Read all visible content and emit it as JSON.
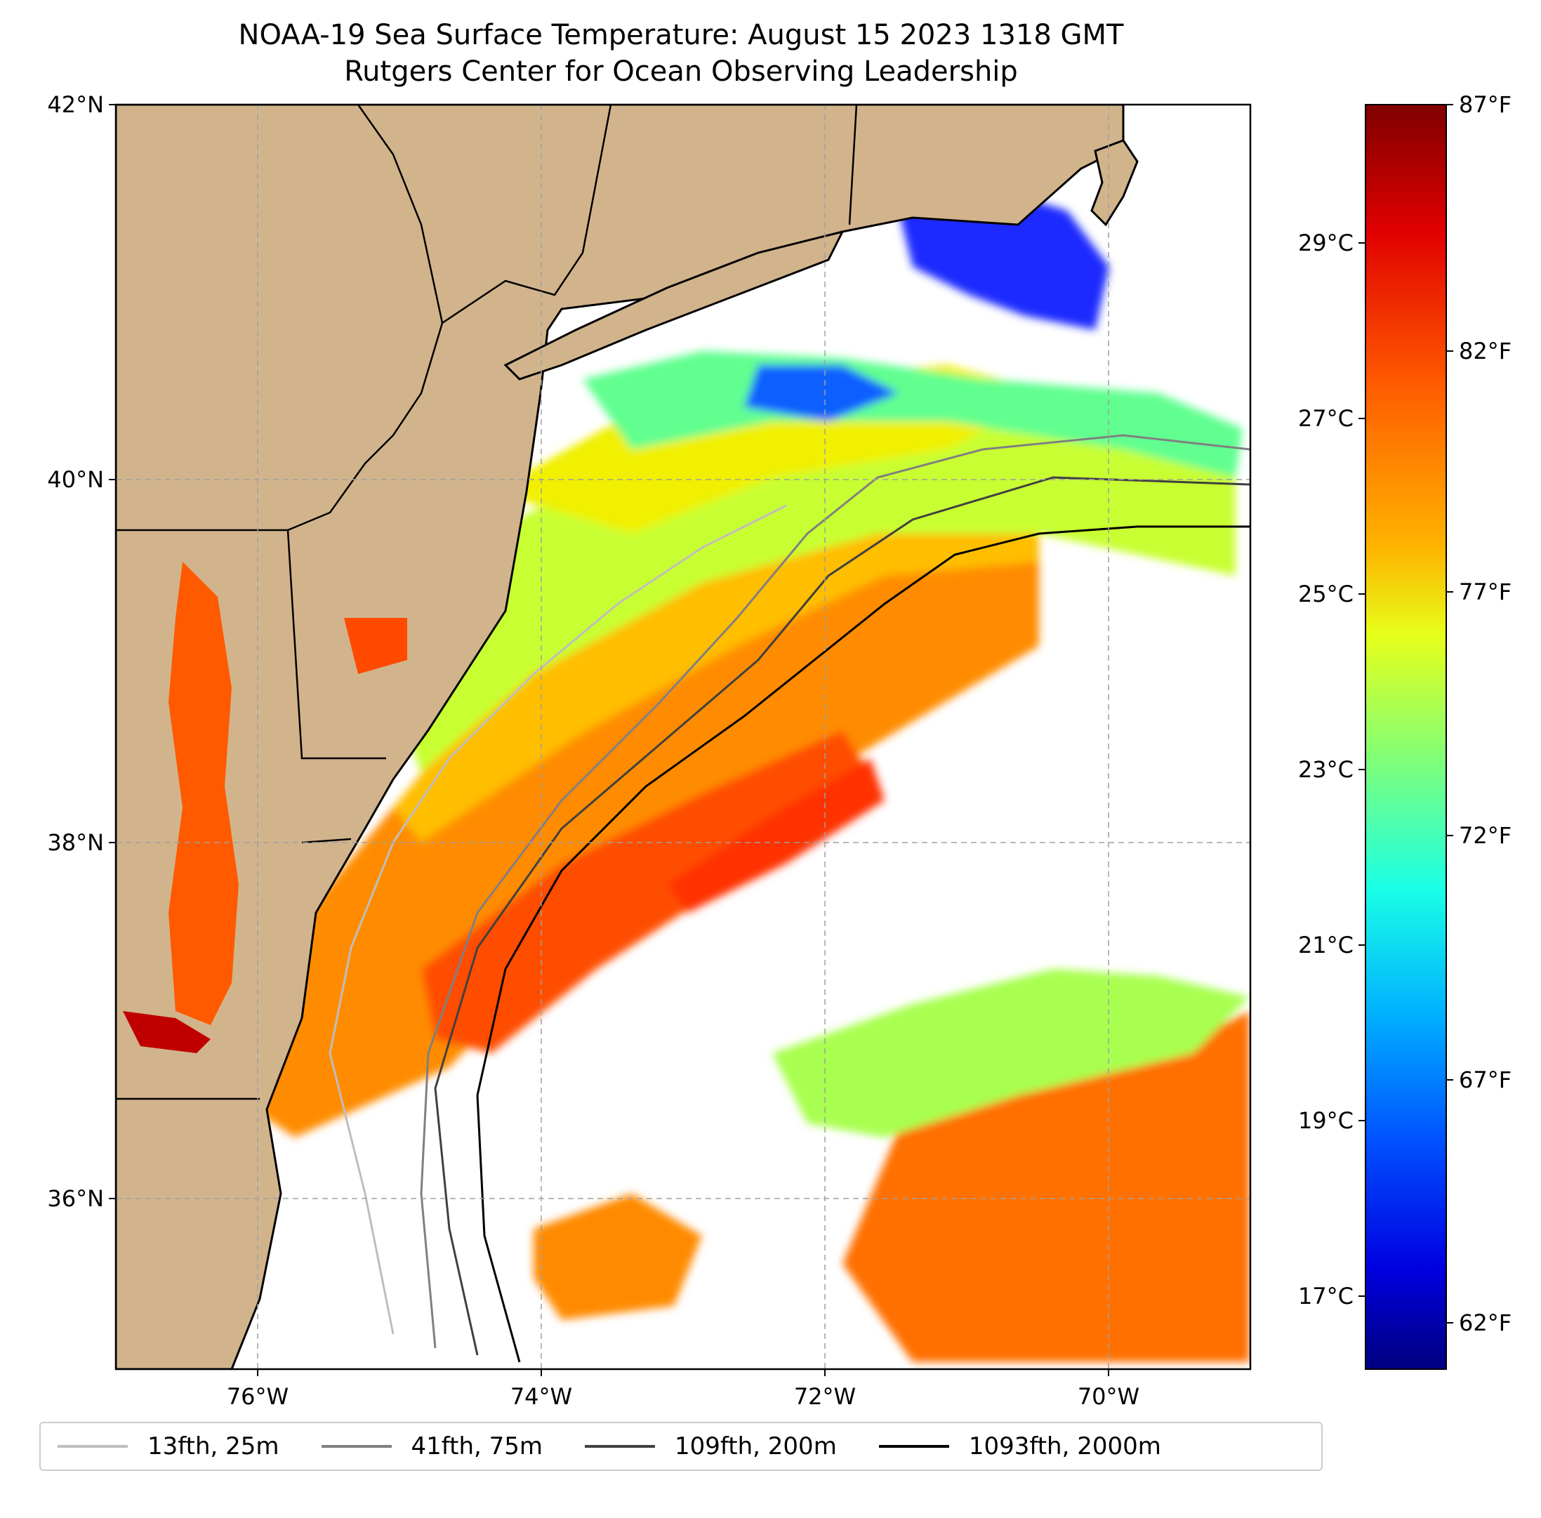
{
  "title": {
    "line1": "NOAA-19 Sea Surface Temperature: August 15 2023 1318 GMT",
    "line2": "Rutgers Center for Ocean Observing Leadership"
  },
  "map": {
    "lat_ticks": [
      "42°N",
      "40°N",
      "38°N",
      "36°N"
    ],
    "lon_ticks": [
      "76°W",
      "74°W",
      "72°W",
      "70°W"
    ],
    "extent": {
      "lon_min": -77,
      "lon_max": -69,
      "lat_min": 35,
      "lat_max": 42
    },
    "land_color": "#D2B48C",
    "no_data_color": "#ffffff",
    "gridlines": true
  },
  "colorbar": {
    "celsius_ticks": [
      "29°C",
      "27°C",
      "25°C",
      "23°C",
      "21°C",
      "19°C",
      "17°C"
    ],
    "fahrenheit_ticks": [
      "87°F",
      "82°F",
      "77°F",
      "72°F",
      "67°F",
      "62°F"
    ],
    "colormap": "jet",
    "colors": [
      "#800000",
      "#e00000",
      "#ff5a00",
      "#ffb400",
      "#e6ff1a",
      "#7dff7a",
      "#1affe6",
      "#00b0ff",
      "#0050ff",
      "#0000e0",
      "#000080"
    ]
  },
  "legend": {
    "items": [
      {
        "label": "13fth, 25m",
        "color": "#bebebe"
      },
      {
        "label": "41fth, 75m",
        "color": "#808080"
      },
      {
        "label": "109fth, 200m",
        "color": "#404040"
      },
      {
        "label": "1093fth, 2000m",
        "color": "#000000"
      }
    ]
  }
}
